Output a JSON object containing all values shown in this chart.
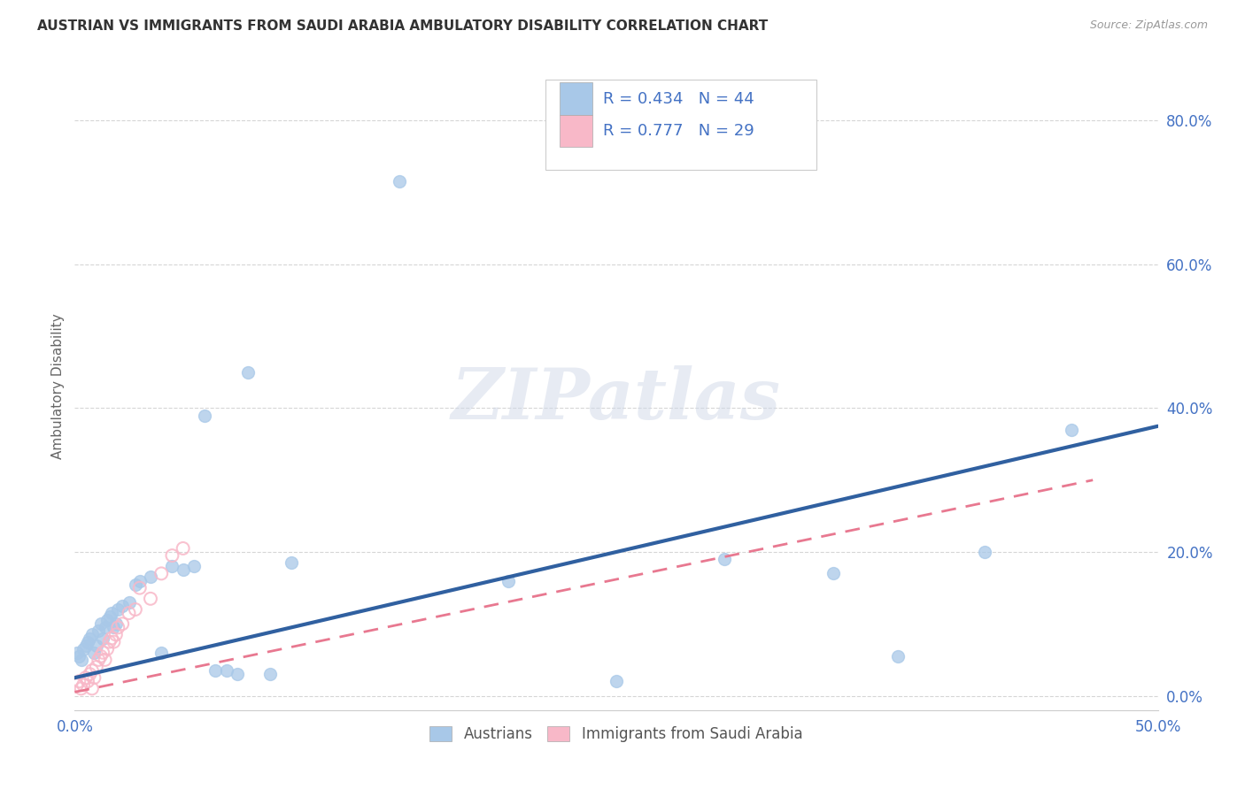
{
  "title": "AUSTRIAN VS IMMIGRANTS FROM SAUDI ARABIA AMBULATORY DISABILITY CORRELATION CHART",
  "source": "Source: ZipAtlas.com",
  "ylabel": "Ambulatory Disability",
  "yticks": [
    "0.0%",
    "20.0%",
    "40.0%",
    "60.0%",
    "80.0%"
  ],
  "ytick_vals": [
    0.0,
    0.2,
    0.4,
    0.6,
    0.8
  ],
  "xlim": [
    0.0,
    0.5
  ],
  "ylim": [
    -0.02,
    0.88
  ],
  "legend_r_blue": "R = 0.434",
  "legend_n_blue": "N = 44",
  "legend_r_pink": "R = 0.777",
  "legend_n_pink": "N = 29",
  "blue_color": "#a8c8e8",
  "blue_line_color": "#3060a0",
  "pink_color": "#f8b8c8",
  "pink_line_color": "#e87890",
  "blue_scatter_x": [
    0.001,
    0.002,
    0.003,
    0.004,
    0.005,
    0.006,
    0.007,
    0.008,
    0.009,
    0.01,
    0.011,
    0.012,
    0.013,
    0.014,
    0.015,
    0.016,
    0.017,
    0.018,
    0.019,
    0.02,
    0.022,
    0.025,
    0.028,
    0.03,
    0.035,
    0.04,
    0.045,
    0.05,
    0.055,
    0.06,
    0.08,
    0.1,
    0.15,
    0.2,
    0.25,
    0.3,
    0.35,
    0.38,
    0.42,
    0.46,
    0.065,
    0.07,
    0.075,
    0.09
  ],
  "blue_scatter_y": [
    0.06,
    0.055,
    0.05,
    0.065,
    0.07,
    0.075,
    0.08,
    0.085,
    0.06,
    0.07,
    0.09,
    0.1,
    0.08,
    0.095,
    0.105,
    0.11,
    0.115,
    0.095,
    0.1,
    0.12,
    0.125,
    0.13,
    0.155,
    0.16,
    0.165,
    0.06,
    0.18,
    0.175,
    0.18,
    0.39,
    0.45,
    0.185,
    0.715,
    0.16,
    0.02,
    0.19,
    0.17,
    0.055,
    0.2,
    0.37,
    0.035,
    0.035,
    0.03,
    0.03
  ],
  "pink_scatter_x": [
    0.001,
    0.002,
    0.003,
    0.004,
    0.005,
    0.006,
    0.007,
    0.008,
    0.009,
    0.01,
    0.011,
    0.012,
    0.013,
    0.014,
    0.015,
    0.016,
    0.017,
    0.018,
    0.019,
    0.02,
    0.022,
    0.025,
    0.028,
    0.03,
    0.035,
    0.04,
    0.045,
    0.05,
    0.008
  ],
  "pink_scatter_y": [
    0.015,
    0.02,
    0.01,
    0.015,
    0.025,
    0.02,
    0.03,
    0.035,
    0.025,
    0.04,
    0.05,
    0.055,
    0.06,
    0.05,
    0.065,
    0.075,
    0.08,
    0.075,
    0.085,
    0.095,
    0.1,
    0.115,
    0.12,
    0.15,
    0.135,
    0.17,
    0.195,
    0.205,
    0.01
  ],
  "blue_trend_x": [
    0.0,
    0.5
  ],
  "blue_trend_y": [
    0.025,
    0.375
  ],
  "pink_trend_x": [
    0.0,
    0.47
  ],
  "pink_trend_y": [
    0.005,
    0.3
  ],
  "watermark_text": "ZIPatlas",
  "legend_labels": [
    "Austrians",
    "Immigrants from Saudi Arabia"
  ],
  "background_color": "#ffffff",
  "grid_color": "#cccccc",
  "title_color": "#333333",
  "tick_color": "#4472c4",
  "ylabel_color": "#666666",
  "title_fontsize": 11,
  "source_fontsize": 9
}
